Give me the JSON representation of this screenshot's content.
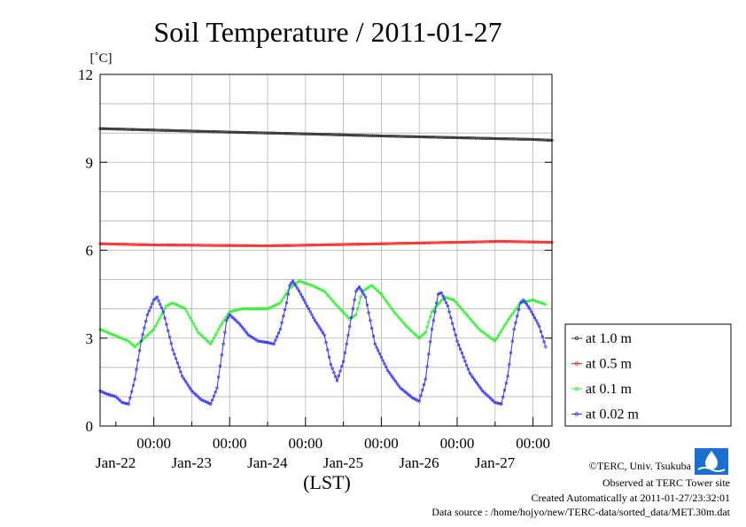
{
  "chart_data": {
    "type": "line",
    "title": "Soil Temperature / 2011-01-27",
    "ylabel": "[˚C]",
    "xlabel": "(LST)",
    "ylim": [
      0,
      12
    ],
    "y_ticks": [
      0,
      3,
      6,
      9,
      12
    ],
    "grid": true,
    "legend_position": "right",
    "x_ticks": [
      {
        "time": "00:00",
        "date": "Jan-22"
      },
      {
        "time": "00:00",
        "date": "Jan-23"
      },
      {
        "time": "00:00",
        "date": "Jan-24"
      },
      {
        "time": "00:00",
        "date": "Jan-25"
      },
      {
        "time": "00:00",
        "date": "Jan-26"
      },
      {
        "time": "00:00",
        "date": "Jan-27"
      }
    ],
    "x_range_hours": [
      -17,
      126
    ],
    "series": [
      {
        "name": "at 1.0 m",
        "color": "#333333",
        "points": [
          [
            -17,
            10.15
          ],
          [
            0,
            10.1
          ],
          [
            24,
            10.03
          ],
          [
            48,
            9.97
          ],
          [
            72,
            9.9
          ],
          [
            96,
            9.84
          ],
          [
            120,
            9.78
          ],
          [
            126,
            9.75
          ]
        ]
      },
      {
        "name": "at 0.5 m",
        "color": "#ff2a2a",
        "points": [
          [
            -17,
            6.22
          ],
          [
            0,
            6.18
          ],
          [
            24,
            6.16
          ],
          [
            36,
            6.15
          ],
          [
            48,
            6.17
          ],
          [
            72,
            6.22
          ],
          [
            96,
            6.27
          ],
          [
            110,
            6.3
          ],
          [
            126,
            6.27
          ]
        ]
      },
      {
        "name": "at 0.1 m",
        "color": "#33ee33",
        "points": [
          [
            -17,
            3.3
          ],
          [
            -8,
            2.9
          ],
          [
            -6,
            2.7
          ],
          [
            0,
            3.3
          ],
          [
            4,
            4.1
          ],
          [
            6,
            4.2
          ],
          [
            10,
            4.0
          ],
          [
            14,
            3.2
          ],
          [
            18,
            2.8
          ],
          [
            21,
            3.4
          ],
          [
            24,
            3.9
          ],
          [
            28,
            4.0
          ],
          [
            32,
            4.0
          ],
          [
            36,
            4.0
          ],
          [
            40,
            4.2
          ],
          [
            43,
            4.7
          ],
          [
            46,
            4.95
          ],
          [
            50,
            4.8
          ],
          [
            54,
            4.6
          ],
          [
            58,
            4.1
          ],
          [
            62,
            3.65
          ],
          [
            64,
            3.8
          ],
          [
            66,
            4.6
          ],
          [
            69,
            4.8
          ],
          [
            72,
            4.5
          ],
          [
            76,
            3.9
          ],
          [
            80,
            3.4
          ],
          [
            84,
            3.0
          ],
          [
            86,
            3.2
          ],
          [
            88,
            3.9
          ],
          [
            92,
            4.4
          ],
          [
            95,
            4.3
          ],
          [
            99,
            3.8
          ],
          [
            103,
            3.3
          ],
          [
            108,
            2.9
          ],
          [
            112,
            3.6
          ],
          [
            116,
            4.2
          ],
          [
            120,
            4.3
          ],
          [
            124,
            4.15
          ]
        ]
      },
      {
        "name": "at 0.02 m",
        "color": "#3333ff",
        "points": [
          [
            -17,
            1.2
          ],
          [
            -15,
            1.1
          ],
          [
            -12,
            1.0
          ],
          [
            -10,
            0.8
          ],
          [
            -8,
            0.75
          ],
          [
            -6,
            1.6
          ],
          [
            -4,
            2.9
          ],
          [
            -2,
            3.8
          ],
          [
            0,
            4.3
          ],
          [
            1,
            4.4
          ],
          [
            3,
            3.9
          ],
          [
            6,
            2.6
          ],
          [
            9,
            1.7
          ],
          [
            12,
            1.2
          ],
          [
            15,
            0.9
          ],
          [
            18,
            0.75
          ],
          [
            20,
            1.3
          ],
          [
            22,
            2.8
          ],
          [
            23,
            3.6
          ],
          [
            24,
            3.8
          ],
          [
            27,
            3.5
          ],
          [
            30,
            3.1
          ],
          [
            33,
            2.9
          ],
          [
            36,
            2.85
          ],
          [
            38,
            2.8
          ],
          [
            40,
            3.3
          ],
          [
            42,
            4.2
          ],
          [
            43,
            4.8
          ],
          [
            44,
            4.95
          ],
          [
            46,
            4.6
          ],
          [
            48,
            4.2
          ],
          [
            51,
            3.6
          ],
          [
            54,
            3.1
          ],
          [
            56,
            2.1
          ],
          [
            58,
            1.55
          ],
          [
            60,
            2.2
          ],
          [
            62,
            3.4
          ],
          [
            64,
            4.6
          ],
          [
            65,
            4.75
          ],
          [
            67,
            4.4
          ],
          [
            70,
            2.8
          ],
          [
            74,
            1.9
          ],
          [
            78,
            1.3
          ],
          [
            82,
            0.95
          ],
          [
            84,
            0.85
          ],
          [
            86,
            1.6
          ],
          [
            88,
            3.3
          ],
          [
            90,
            4.5
          ],
          [
            91,
            4.55
          ],
          [
            93,
            4.1
          ],
          [
            96,
            2.9
          ],
          [
            100,
            1.8
          ],
          [
            104,
            1.2
          ],
          [
            108,
            0.8
          ],
          [
            110,
            0.75
          ],
          [
            112,
            1.7
          ],
          [
            114,
            3.3
          ],
          [
            116,
            4.2
          ],
          [
            117,
            4.3
          ],
          [
            119,
            4.0
          ],
          [
            122,
            3.4
          ],
          [
            124,
            2.7
          ]
        ]
      }
    ]
  },
  "credits": {
    "copyright": "©TERC, Univ. Tsukuba",
    "observed": "Observed at TERC Tower site",
    "created": "Created Automatically at 2011-01-27/23:32:01",
    "source": "Data source : /home/hojyo/new/TERC-data/sorted_data/MET.30m.dat"
  }
}
